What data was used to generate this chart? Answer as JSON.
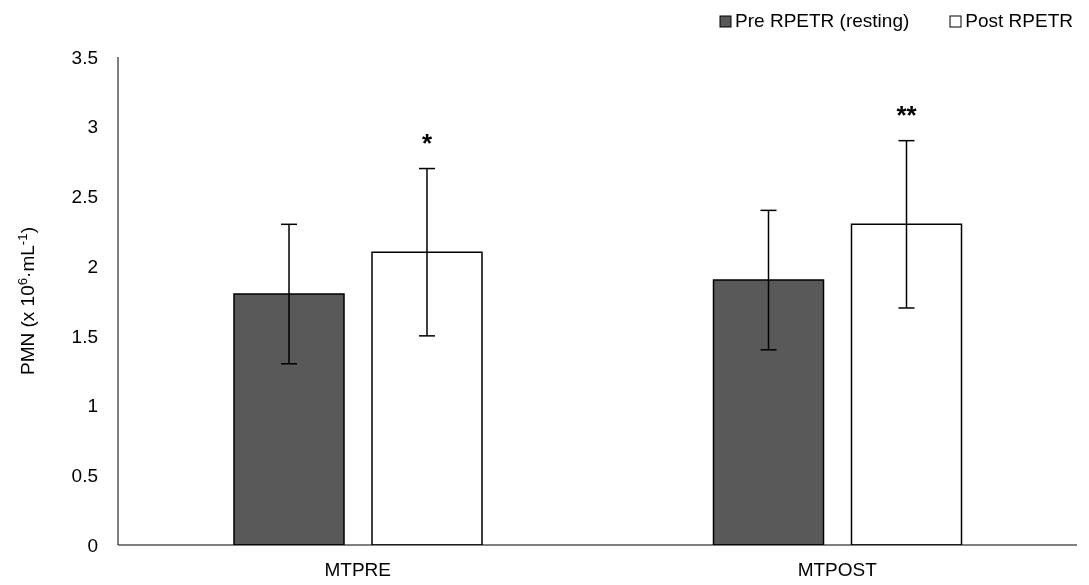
{
  "chart_data": {
    "type": "bar",
    "ylabel": "PMN (x 10$^{6}$·mL$^{-1}$)",
    "categories": [
      "MTPRE",
      "MTPOST"
    ],
    "series": [
      {
        "name": "Pre RPETR (resting)",
        "color": "#595959",
        "values": [
          1.8,
          1.9
        ],
        "errors": [
          0.5,
          0.5
        ]
      },
      {
        "name": "Post RPETR",
        "color": "#ffffff",
        "values": [
          2.1,
          2.3
        ],
        "errors": [
          0.6,
          0.6
        ]
      }
    ],
    "annotations": [
      "*",
      "**"
    ],
    "ylim": [
      0,
      3.5
    ],
    "yticks": [
      0,
      0.5,
      1,
      1.5,
      2,
      2.5,
      3,
      3.5
    ],
    "grid": false,
    "legend": "top right"
  }
}
